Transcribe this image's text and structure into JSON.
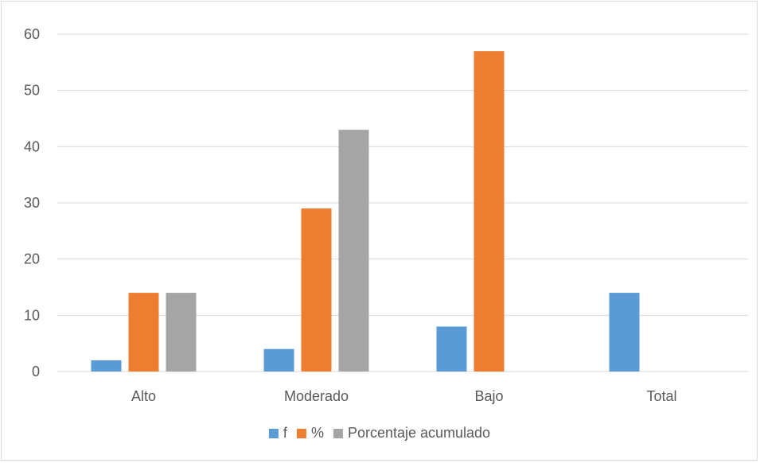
{
  "chart_data": {
    "type": "bar",
    "title": "",
    "xlabel": "",
    "ylabel": "",
    "categories": [
      "Alto",
      "Moderado",
      "Bajo",
      "Total"
    ],
    "series": [
      {
        "name": "f",
        "values": [
          2,
          4,
          8,
          14
        ],
        "color": "#5B9BD5"
      },
      {
        "name": "%",
        "values": [
          14,
          29,
          57,
          null
        ],
        "color": "#ED7D31"
      },
      {
        "name": "Porcentaje acumulado",
        "values": [
          14,
          43,
          null,
          null
        ],
        "color": "#A5A5A5"
      }
    ],
    "ylim": [
      0,
      60
    ],
    "yticks": [
      "0",
      "10",
      "20",
      "30",
      "40",
      "50",
      "60"
    ],
    "grid": true,
    "legend_position": "bottom"
  }
}
